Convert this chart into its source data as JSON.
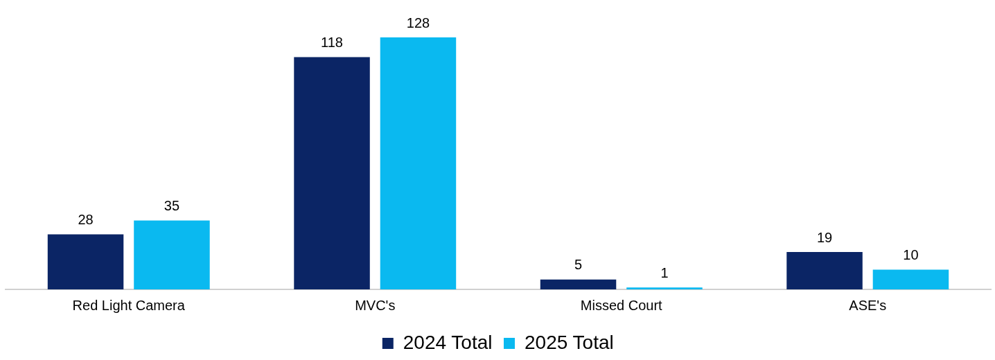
{
  "chart_data": {
    "type": "bar",
    "categories": [
      "Red Light Camera",
      "MVC's",
      "Missed Court",
      "ASE's"
    ],
    "series": [
      {
        "name": "2024 Total",
        "color": "#0b2565",
        "values": [
          28,
          118,
          5,
          19
        ]
      },
      {
        "name": "2025 Total",
        "color": "#0ab9f0",
        "values": [
          35,
          128,
          1,
          10
        ]
      }
    ],
    "tick_labels": "x",
    "data_labels": true,
    "grid": false,
    "legend": "bottom"
  }
}
